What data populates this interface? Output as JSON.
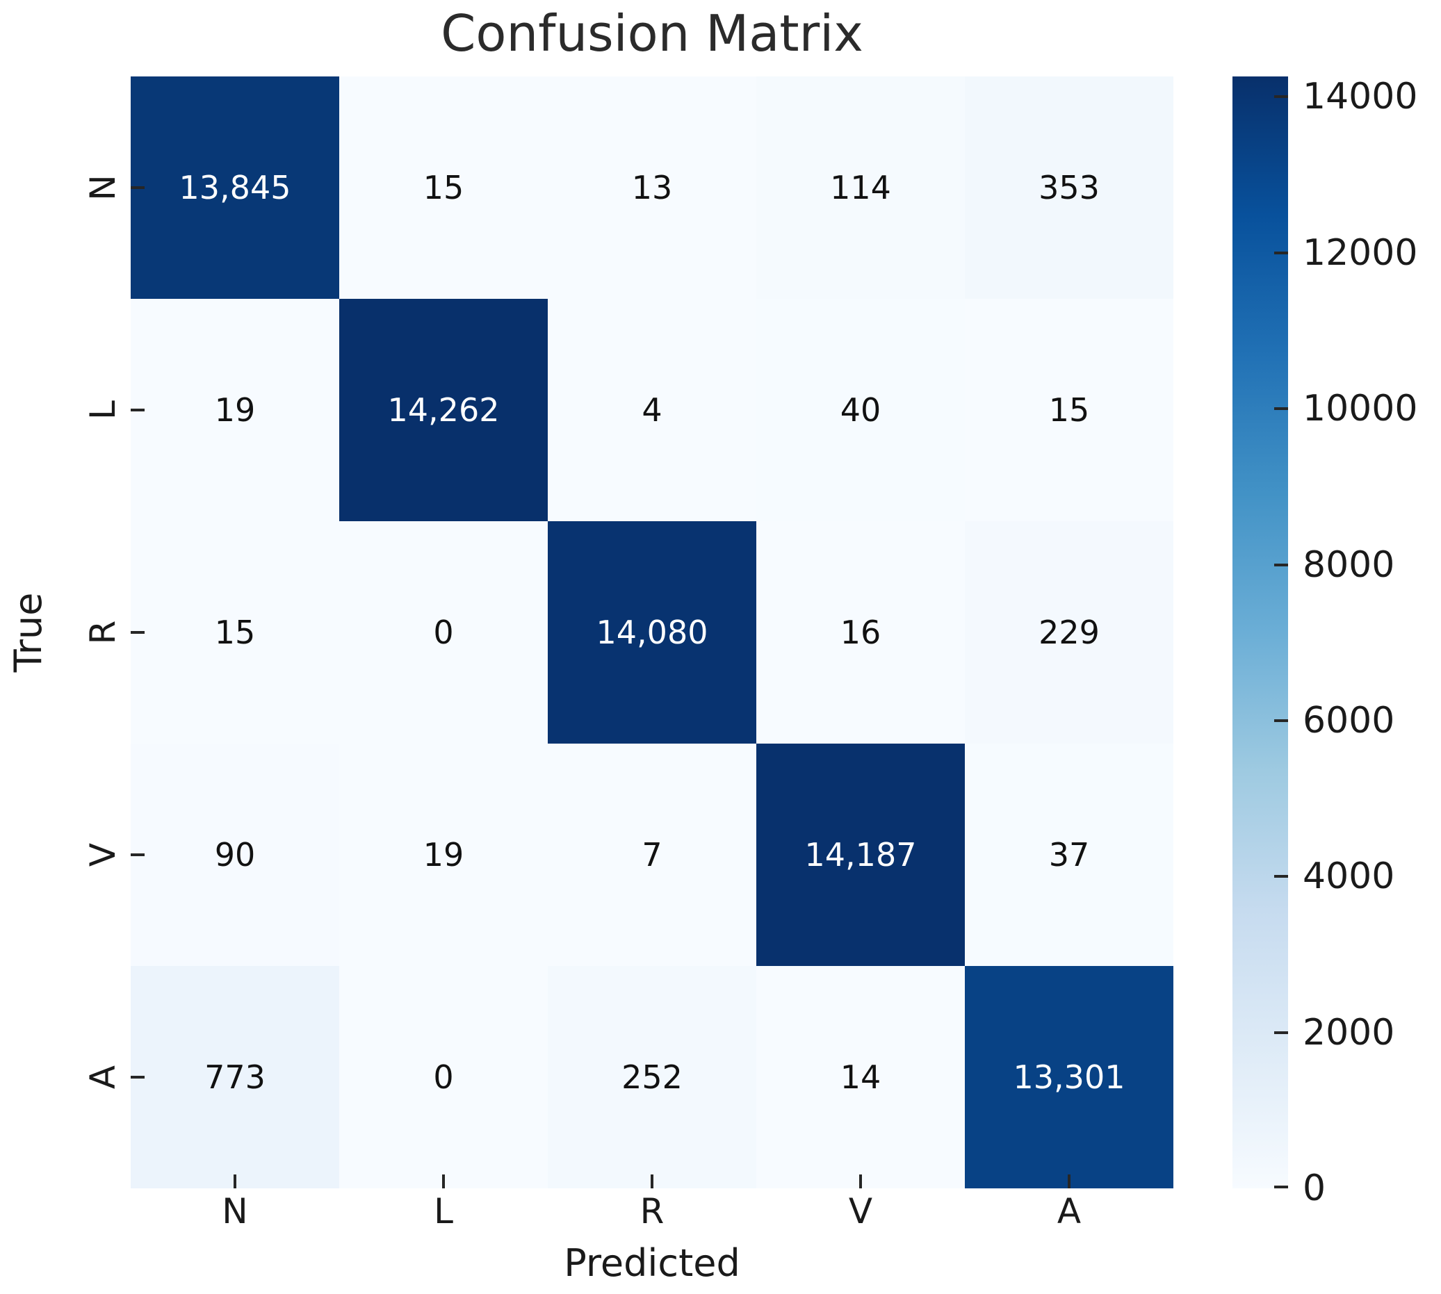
{
  "title": "Confusion Matrix",
  "chart_data": {
    "type": "heatmap",
    "title": "Confusion Matrix",
    "xlabel": "Predicted",
    "ylabel": "True",
    "x_categories": [
      "N",
      "L",
      "R",
      "V",
      "A"
    ],
    "y_categories": [
      "N",
      "L",
      "R",
      "V",
      "A"
    ],
    "matrix": [
      [
        13845,
        15,
        13,
        114,
        353
      ],
      [
        19,
        14262,
        4,
        40,
        15
      ],
      [
        15,
        0,
        14080,
        16,
        229
      ],
      [
        90,
        19,
        7,
        14187,
        37
      ],
      [
        773,
        0,
        252,
        14,
        13301
      ]
    ],
    "vmin": 0,
    "vmax": 14262,
    "colormap": "Blues",
    "colorbar_ticks": [
      0,
      2000,
      4000,
      6000,
      8000,
      10000,
      12000,
      14000
    ],
    "annotation_format": "thousands-comma",
    "legend_position": "right-colorbar",
    "grid": false
  },
  "colors": {
    "background": "#ffffff",
    "cmap_min": "#f7fbff",
    "cmap_max": "#08306b",
    "annotation_dark": "#111111",
    "annotation_light": "#ffffff",
    "tick_color": "#262626",
    "text_color": "#1a1a1a"
  }
}
